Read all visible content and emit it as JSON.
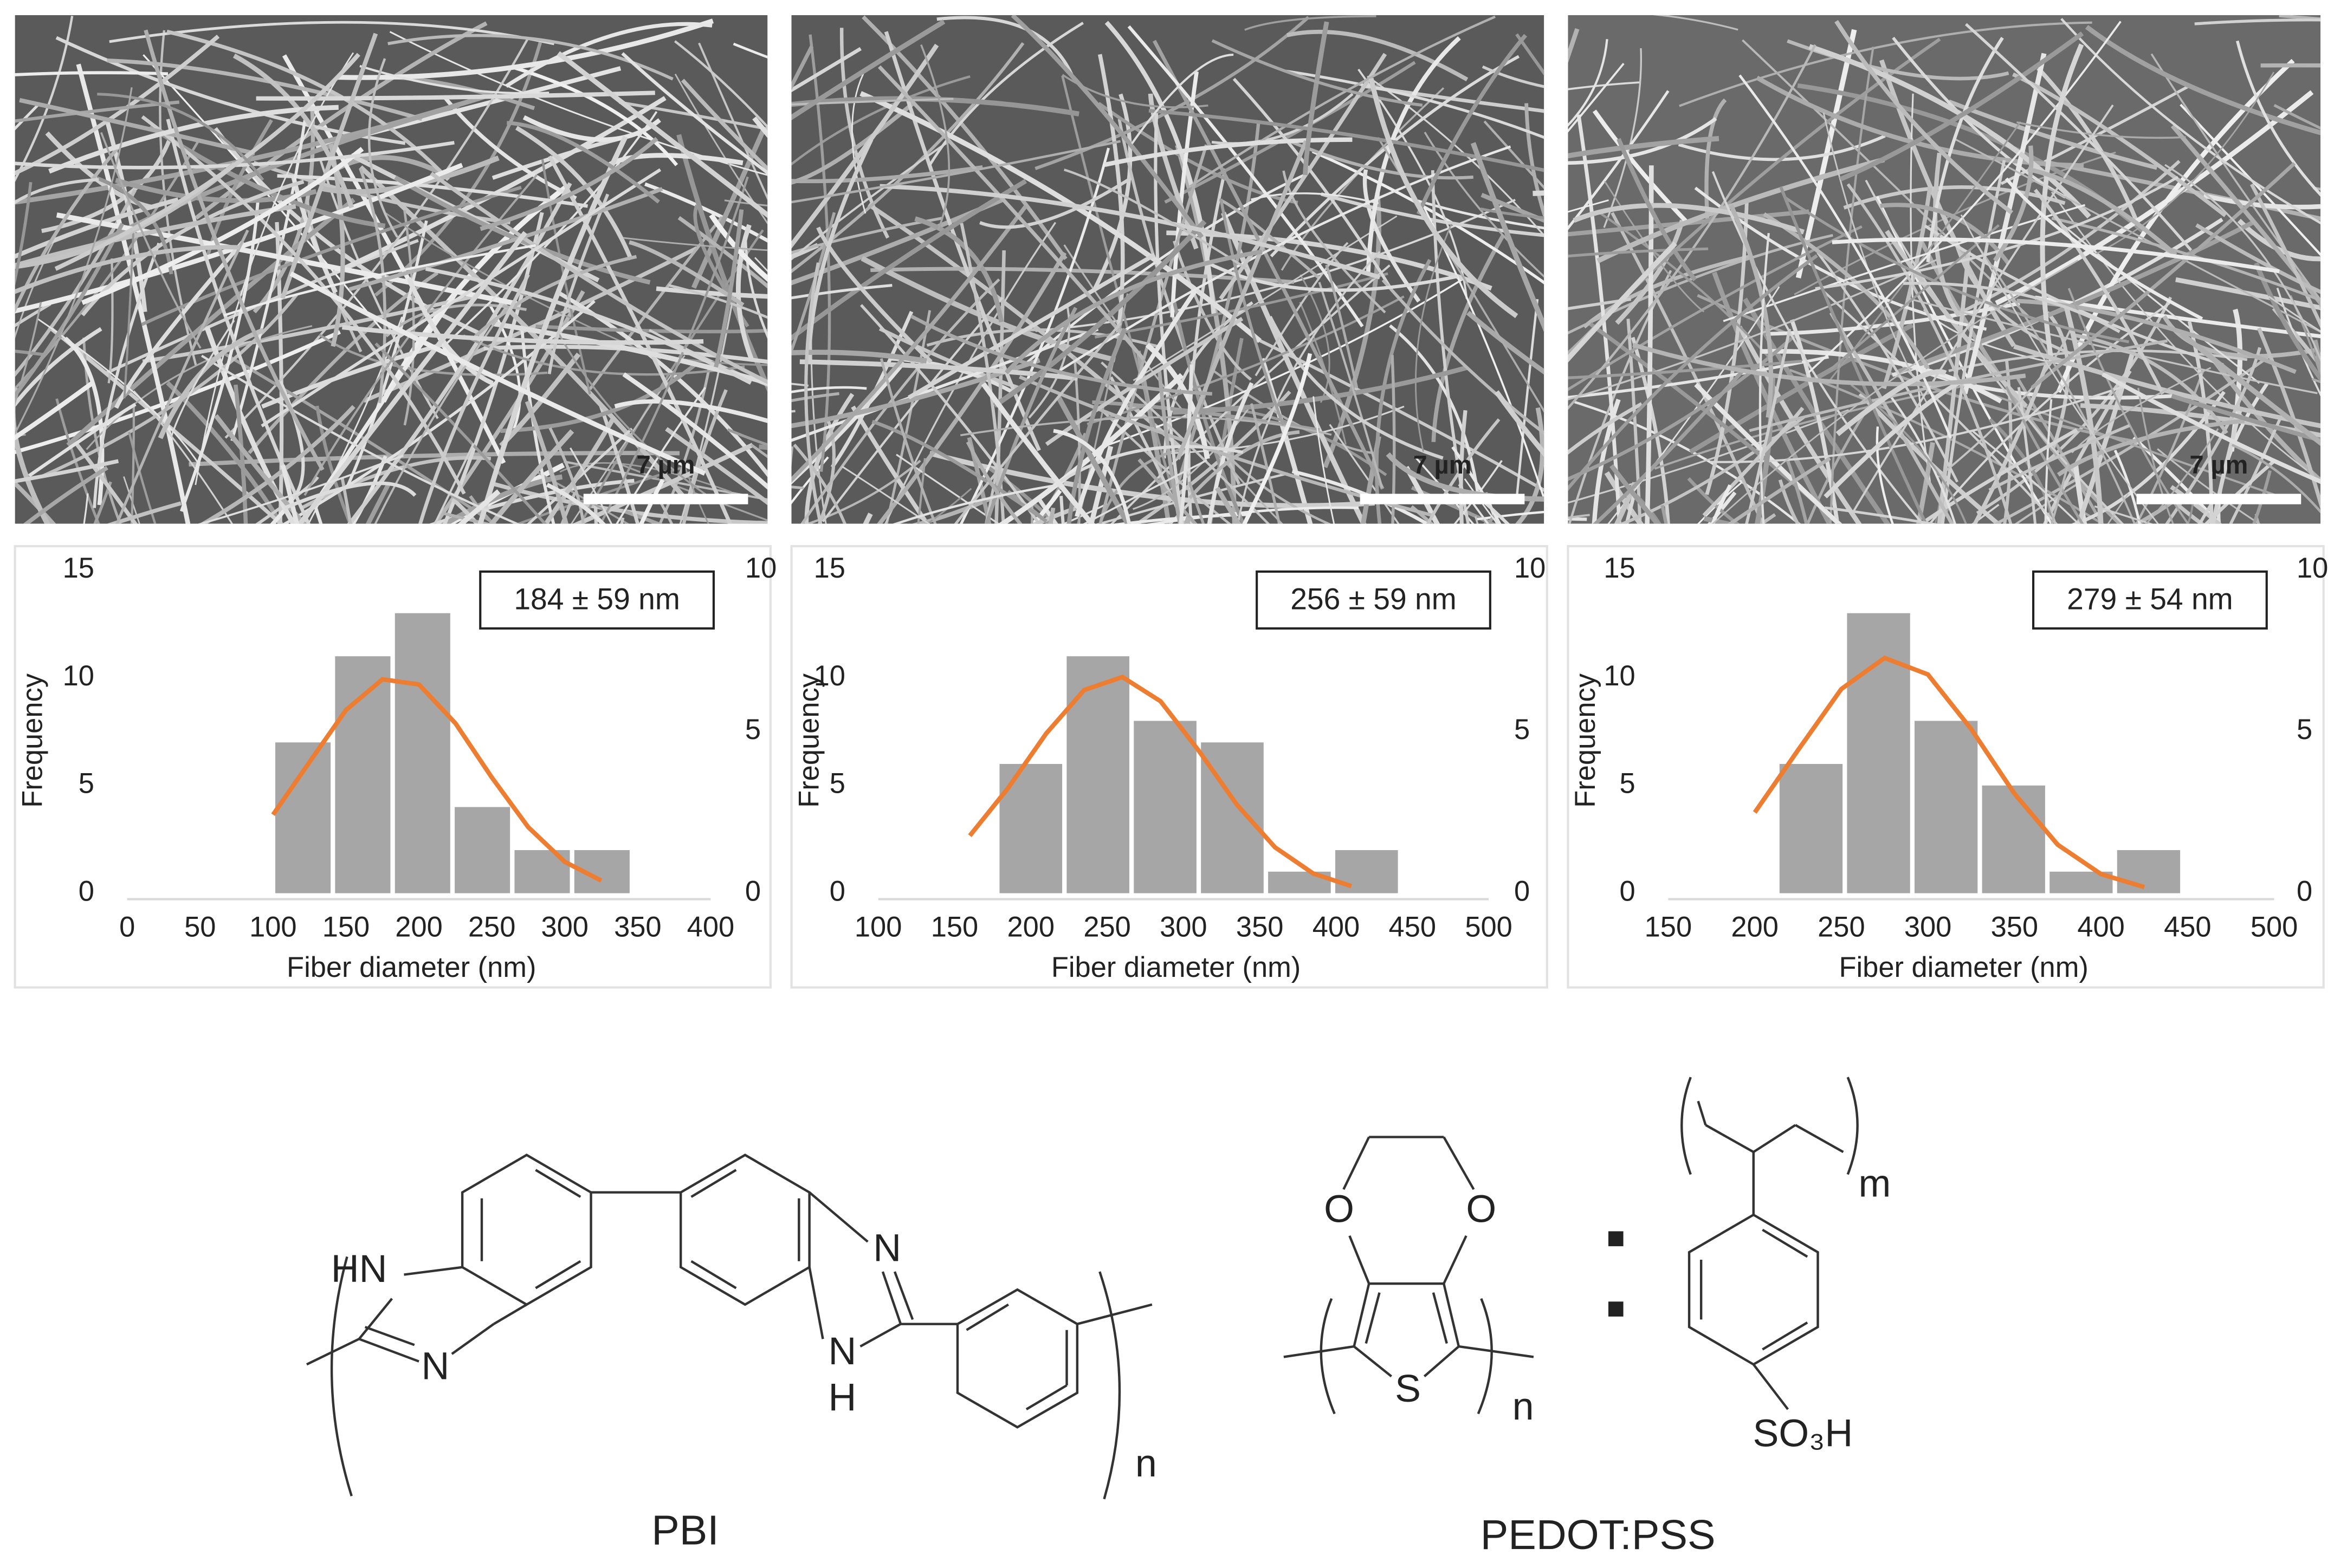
{
  "images": [
    {
      "scale_bar": "7 µm"
    },
    {
      "scale_bar": "7 µm"
    },
    {
      "scale_bar": "7 µm"
    }
  ],
  "chart_data": [
    {
      "type": "histogram",
      "ylabel": "Frequency",
      "xlabel": "Fiber diameter (nm)",
      "annotation": "184 ± 59 nm",
      "bins": [
        100,
        141,
        182,
        223,
        264,
        305,
        346
      ],
      "values": [
        7,
        11,
        13,
        4,
        2,
        2
      ],
      "color": "#a6a6a6",
      "fit": {
        "x": [
          100,
          125,
          150,
          175,
          200,
          225,
          250,
          275,
          300,
          325
        ],
        "values": [
          2.43,
          4.06,
          5.67,
          6.62,
          6.46,
          5.26,
          3.58,
          2.04,
          0.97,
          0.39
        ],
        "color": "#ed7d31",
        "axis": "y2"
      },
      "xlim": [
        0,
        400
      ],
      "xticks": [
        0,
        50,
        100,
        150,
        200,
        250,
        300,
        350,
        400
      ],
      "ylim": [
        0,
        15
      ],
      "yticks": [
        0,
        5,
        10,
        15
      ],
      "y2lim": [
        0,
        10
      ],
      "y2ticks": [
        0,
        5,
        10
      ]
    },
    {
      "type": "histogram",
      "ylabel": "Frequency",
      "xlabel": "Fiber diameter (nm)",
      "annotation": "256 ± 59 nm",
      "bins": [
        178,
        222,
        266,
        310,
        354,
        398,
        442
      ],
      "values": [
        6,
        11,
        8,
        7,
        1,
        2
      ],
      "color": "#a6a6a6",
      "fit": {
        "x": [
          160,
          185,
          210,
          235,
          260,
          285,
          310,
          335,
          360,
          385,
          410
        ],
        "values": [
          1.78,
          3.25,
          4.94,
          6.29,
          6.69,
          5.94,
          4.41,
          2.74,
          1.42,
          0.61,
          0.22
        ],
        "color": "#ed7d31",
        "axis": "y2"
      },
      "xlim": [
        100,
        500
      ],
      "xticks": [
        100,
        150,
        200,
        250,
        300,
        350,
        400,
        450,
        500
      ],
      "ylim": [
        0,
        15
      ],
      "yticks": [
        0,
        5,
        10,
        15
      ],
      "y2lim": [
        0,
        10
      ],
      "y2ticks": [
        0,
        5,
        10
      ]
    },
    {
      "type": "histogram",
      "ylabel": "Frequency",
      "xlabel": "Fiber diameter (nm)",
      "annotation": "279 ± 54 nm",
      "bins": [
        213,
        252,
        291,
        330,
        369,
        408,
        447
      ],
      "values": [
        6,
        13,
        8,
        5,
        1,
        2
      ],
      "color": "#a6a6a6",
      "fit": {
        "x": [
          200,
          225,
          250,
          275,
          300,
          325,
          350,
          375,
          400,
          425
        ],
        "values": [
          2.5,
          4.43,
          6.32,
          7.28,
          6.77,
          5.08,
          3.08,
          1.5,
          0.59,
          0.19
        ],
        "color": "#ed7d31",
        "axis": "y2"
      },
      "xlim": [
        150,
        500
      ],
      "xticks": [
        150,
        200,
        250,
        300,
        350,
        400,
        450,
        500
      ],
      "ylim": [
        0,
        15
      ],
      "yticks": [
        0,
        5,
        10,
        15
      ],
      "y2lim": [
        0,
        10
      ],
      "y2ticks": [
        0,
        5,
        10
      ]
    }
  ],
  "structures": {
    "pbi": {
      "name": "PBI",
      "atoms": [
        "HN",
        "N",
        "N",
        "H"
      ],
      "repeat": "n"
    },
    "pedot_pss": {
      "name": "PEDOT:PSS",
      "atoms": [
        "O",
        "O",
        "S",
        "SO₃H"
      ],
      "repeats": [
        "n",
        "m"
      ]
    }
  }
}
